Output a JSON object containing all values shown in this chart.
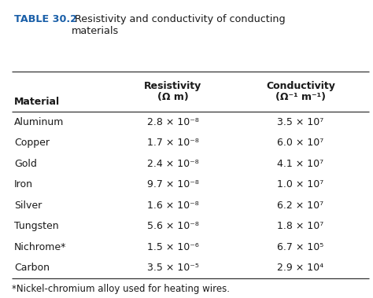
{
  "title_bold": "TABLE 30.2",
  "title_rest": " Resistivity and conductivity of conducting\nmaterials",
  "materials": [
    "Aluminum",
    "Copper",
    "Gold",
    "Iron",
    "Silver",
    "Tungsten",
    "Nichrome*",
    "Carbon"
  ],
  "resistivity": [
    "2.8 × 10⁻⁸",
    "1.7 × 10⁻⁸",
    "2.4 × 10⁻⁸",
    "9.7 × 10⁻⁸",
    "1.6 × 10⁻⁸",
    "5.6 × 10⁻⁸",
    "1.5 × 10⁻⁶",
    "3.5 × 10⁻⁵"
  ],
  "conductivity": [
    "3.5 × 10⁷",
    "6.0 × 10⁷",
    "4.1 × 10⁷",
    "1.0 × 10⁷",
    "6.2 × 10⁷",
    "1.8 × 10⁷",
    "6.7 × 10⁵",
    "2.9 × 10⁴"
  ],
  "footnote": "*Nickel-chromium alloy used for heating wires.",
  "bg_color": "#ffffff",
  "text_color": "#1a1a1a",
  "title_color": "#1a5fa8",
  "line_color": "#333333",
  "header_fontsize": 9.0,
  "data_fontsize": 9.0,
  "title_bold_fontsize": 9.2,
  "title_rest_fontsize": 9.2,
  "footnote_fontsize": 8.5,
  "fig_width": 4.74,
  "fig_height": 3.79,
  "dpi": 100
}
